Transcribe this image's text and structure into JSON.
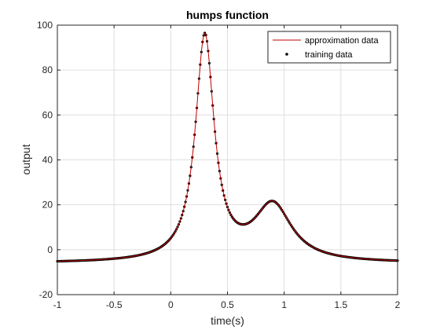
{
  "chart_data": {
    "type": "line",
    "title": "humps function",
    "xlabel": "time(s)",
    "ylabel": "output",
    "xlim": [
      -1,
      2
    ],
    "ylim": [
      -20,
      100
    ],
    "xticks": [
      "-1",
      "-0.5",
      "0",
      "0.5",
      "1",
      "1.5",
      "2"
    ],
    "yticks": [
      "-20",
      "0",
      "20",
      "40",
      "60",
      "80",
      "100"
    ],
    "grid": true,
    "legend_position": "top-right",
    "function": "1/((x-0.3)^2+0.01) + 1/((x-0.9)^2+0.04) - 6",
    "x_step": 0.01,
    "series": [
      {
        "name": "approximation data",
        "style": "line",
        "color": "#c00000",
        "x": [
          -1.0,
          -0.75,
          -0.5,
          -0.25,
          0.0,
          0.1,
          0.2,
          0.25,
          0.3,
          0.35,
          0.4,
          0.5,
          0.6,
          0.64,
          0.7,
          0.8,
          0.9,
          1.0,
          1.1,
          1.25,
          1.5,
          1.75,
          2.0
        ],
        "y": [
          -5.18,
          -4.71,
          -3.86,
          -1.68,
          5.18,
          15.77,
          45.29,
          71.18,
          96.25,
          71.05,
          44.98,
          14.99,
          11.22,
          10.98,
          13.02,
          20.0,
          21.0,
          20.0,
          13.2,
          4.06,
          -2.7,
          -4.21,
          -4.92
        ]
      },
      {
        "name": "training data",
        "style": "markers",
        "color": "#000000",
        "x": [
          -1.0,
          -0.75,
          -0.5,
          -0.25,
          0.0,
          0.1,
          0.2,
          0.25,
          0.3,
          0.35,
          0.4,
          0.5,
          0.6,
          0.64,
          0.7,
          0.8,
          0.9,
          1.0,
          1.1,
          1.25,
          1.5,
          1.75,
          2.0
        ],
        "y": [
          -5.18,
          -4.71,
          -3.86,
          -1.68,
          5.18,
          15.77,
          45.29,
          71.18,
          96.25,
          71.05,
          44.98,
          14.99,
          11.22,
          10.98,
          13.02,
          20.0,
          21.0,
          20.0,
          13.2,
          4.06,
          -2.7,
          -4.21,
          -4.92
        ]
      }
    ]
  }
}
